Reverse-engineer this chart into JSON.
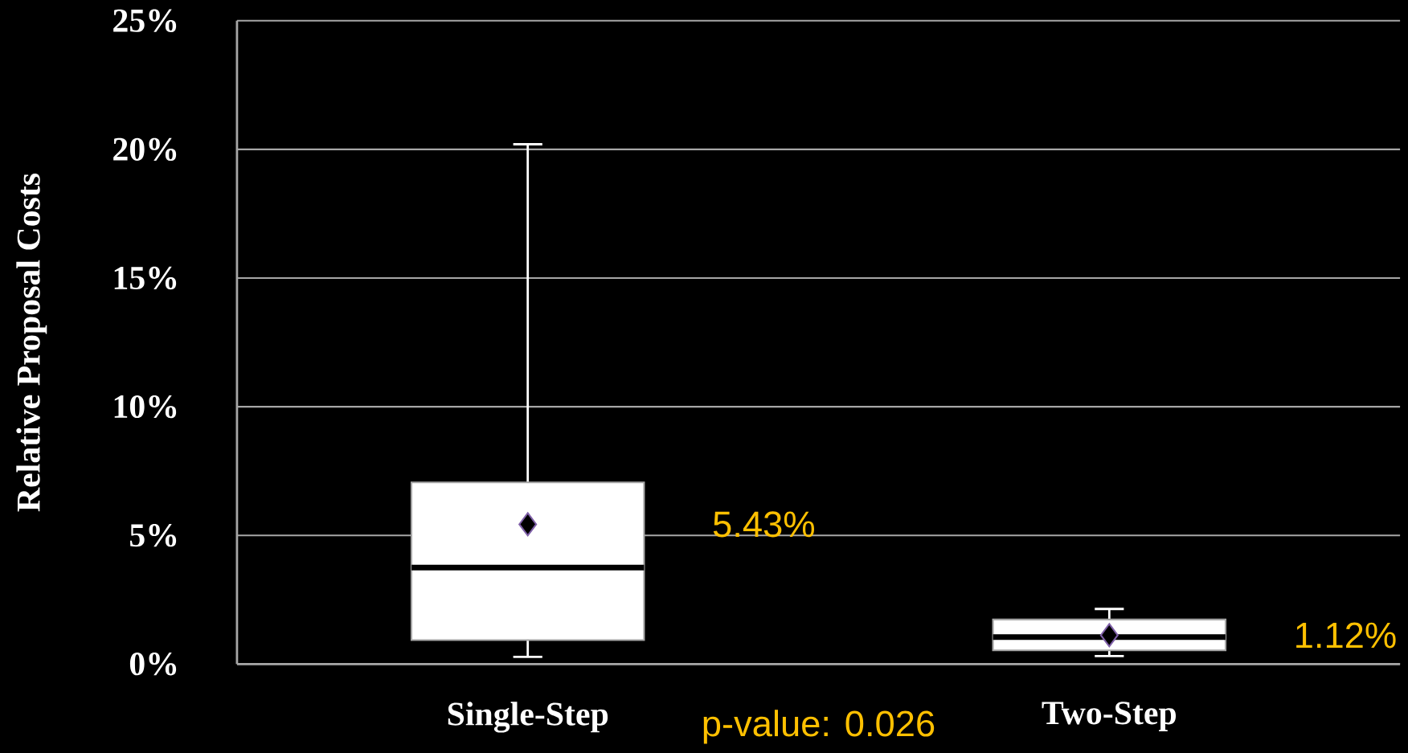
{
  "chart_data": {
    "type": "box",
    "ylabel": "Relative Proposal Costs",
    "categories": [
      "Single-Step",
      "Two-Step"
    ],
    "boxes": [
      {
        "low": 0.28,
        "q1": 0.93,
        "median": 3.75,
        "q3": 7.06,
        "high": 20.2,
        "mean": 5.43
      },
      {
        "low": 0.31,
        "q1": 0.53,
        "median": 1.05,
        "q3": 1.73,
        "high": 2.14,
        "mean": 1.12
      }
    ],
    "color": "#ffffff",
    "ylim": [
      0,
      25
    ],
    "yticks": [
      {
        "value": 0,
        "label": "0%"
      },
      {
        "value": 5,
        "label": "5%"
      },
      {
        "value": 10,
        "label": "10%"
      },
      {
        "value": 15,
        "label": "15%"
      },
      {
        "value": 20,
        "label": "20%"
      },
      {
        "value": 25,
        "label": "25%"
      }
    ],
    "grid": "y",
    "marker": "diamond",
    "annotations": [
      "5.43%",
      "1.12%",
      "p-value: 0.026"
    ]
  }
}
